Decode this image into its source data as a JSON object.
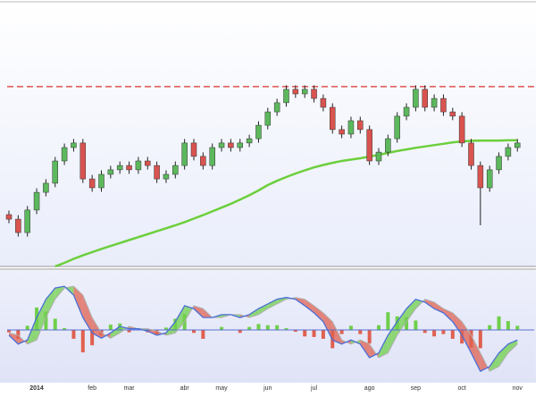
{
  "chart_data": [
    {
      "type": "candlestick",
      "categories": [
        null,
        null,
        null,
        "2014",
        null,
        null,
        null,
        null,
        null,
        "feb",
        null,
        null,
        null,
        "mar",
        null,
        null,
        null,
        null,
        null,
        "abr",
        null,
        null,
        null,
        "may",
        null,
        null,
        null,
        null,
        "jun",
        null,
        null,
        null,
        null,
        "jul",
        null,
        null,
        null,
        null,
        null,
        "ago",
        null,
        null,
        null,
        null,
        "sep",
        null,
        null,
        null,
        null,
        "oct",
        null,
        null,
        null,
        null,
        null,
        "nov"
      ],
      "open": [
        20,
        18.3,
        13.3,
        21.7,
        28.3,
        31.7,
        40,
        45,
        46.7,
        33.3,
        30,
        35,
        36.7,
        38.3,
        36.7,
        40,
        38.3,
        33.3,
        35,
        38.3,
        46.7,
        41.7,
        38.3,
        45,
        46.7,
        45,
        46.7,
        48.3,
        53.3,
        58.3,
        61.7,
        66.7,
        65,
        66.7,
        63.3,
        60,
        51.7,
        50,
        55,
        51.7,
        40,
        43.3,
        48.3,
        56.7,
        60,
        66.7,
        60,
        63.3,
        58.3,
        56.7,
        46.7,
        38.3,
        30,
        36.7,
        41.7,
        45
      ],
      "high": [
        21.5,
        19.8,
        23.2,
        29.8,
        33.2,
        41.5,
        46.5,
        48.2,
        48.2,
        34.8,
        36.5,
        38.2,
        39.8,
        39.8,
        41.5,
        41.5,
        39.8,
        36.5,
        39.8,
        48.2,
        48.2,
        43.2,
        46.5,
        48.2,
        48.2,
        48.2,
        49.8,
        54.8,
        59.8,
        63.2,
        68.2,
        68.2,
        68.2,
        68.2,
        64.8,
        61.5,
        53.2,
        56.5,
        56.5,
        53.2,
        44.8,
        49.8,
        58.2,
        61.5,
        68.2,
        68.2,
        64.8,
        64.8,
        59.8,
        58.2,
        48.2,
        39.8,
        38.2,
        43.2,
        46.5,
        48.2
      ],
      "low": [
        16.8,
        11.8,
        11.8,
        20.2,
        26.8,
        30.2,
        38.5,
        43.5,
        31.8,
        28.5,
        28.5,
        33.5,
        35.2,
        35.2,
        35.2,
        36.8,
        31.8,
        31.8,
        33.5,
        36.8,
        40.2,
        36.8,
        36.8,
        43.5,
        43.5,
        43.5,
        45.2,
        46.8,
        51.8,
        56.8,
        60.2,
        63.5,
        63.5,
        61.8,
        58.5,
        50.2,
        48.5,
        48.5,
        50.2,
        38.5,
        38.5,
        41.8,
        46.8,
        55.2,
        58.5,
        58.5,
        58.5,
        56.8,
        55.2,
        45.2,
        36.8,
        16,
        28.5,
        35.2,
        40.2,
        43.5
      ],
      "close": [
        18.3,
        13.3,
        21.7,
        28.3,
        31.7,
        40,
        45,
        46.7,
        33.3,
        30,
        35,
        36.7,
        38.3,
        36.7,
        40,
        38.3,
        33.3,
        35,
        38.3,
        46.7,
        41.7,
        38.3,
        45,
        46.7,
        45,
        46.7,
        48.3,
        53.3,
        58.3,
        61.7,
        66.7,
        65,
        66.7,
        63.3,
        60,
        51.7,
        50,
        55,
        51.7,
        40,
        43.3,
        48.3,
        56.7,
        60,
        66.7,
        60,
        63.3,
        58.3,
        56.7,
        46.7,
        38.3,
        30,
        36.7,
        41.7,
        45,
        46.7
      ],
      "up_color": "#5cb85c",
      "down_color": "#d9534f",
      "moving_average": {
        "color": "#6ccf3c",
        "values": [
          null,
          null,
          null,
          null,
          null,
          0.7,
          2,
          3.5,
          4.8,
          6,
          7.2,
          8.3,
          9.4,
          10.5,
          11.6,
          12.7,
          13.8,
          14.9,
          16,
          17.2,
          18.5,
          19.8,
          21.2,
          22.6,
          24,
          25.6,
          27.2,
          29,
          31,
          32.6,
          34,
          35.3,
          36.5,
          37.6,
          38.5,
          39.3,
          40,
          40.5,
          41,
          41.6,
          42.3,
          43,
          43.7,
          44.3,
          44.9,
          45.4,
          45.9,
          46.4,
          46.9,
          47.3,
          47.5,
          47.6,
          47.6,
          47.6,
          47.7,
          47.7
        ]
      },
      "levels": [
        {
          "value": 67.7,
          "color": "#d9342b",
          "style": "dashed"
        },
        {
          "value": 47.7,
          "color": "#e0443c",
          "style": "solid",
          "from": 50,
          "to": 55
        }
      ],
      "ylim": [
        0,
        100
      ]
    },
    {
      "type": "macd",
      "macd": {
        "color": "#4a6fd8",
        "values": [
          -0.9,
          -2.4,
          -1.7,
          2.1,
          5.2,
          7.1,
          7.4,
          5.9,
          2.1,
          -0.5,
          -1.4,
          -0.5,
          0.6,
          0.2,
          0.2,
          -0.2,
          -0.9,
          -0.5,
          1.4,
          4.1,
          3.6,
          2.1,
          2.1,
          2.6,
          2.6,
          2.1,
          2.6,
          3.6,
          4.4,
          5.2,
          5.5,
          5.2,
          4.1,
          2.9,
          1.4,
          -1.7,
          -2.4,
          -1.7,
          -2.4,
          -4.7,
          -3.9,
          -0.9,
          1.4,
          3.6,
          5.2,
          4.7,
          3.6,
          2.9,
          1.4,
          -0.9,
          -3.9,
          -7,
          -6.2,
          -3.9,
          -2.4,
          -1.7
        ]
      },
      "signal": {
        "color": "#b0b0b0",
        "values": [
          -0.5,
          -0.9,
          -2.4,
          -1.7,
          2.1,
          5.2,
          7.1,
          7.4,
          5.9,
          2.1,
          -0.5,
          -1.4,
          -0.5,
          0.6,
          0.2,
          0.2,
          -0.2,
          -0.9,
          -0.5,
          1.4,
          4.1,
          3.6,
          2.1,
          2.1,
          2.6,
          2.6,
          2.1,
          2.6,
          3.6,
          4.4,
          5.2,
          5.5,
          5.2,
          4.1,
          2.9,
          1.4,
          -1.7,
          -2.4,
          -1.7,
          -2.4,
          -4.7,
          -3.9,
          -0.9,
          1.4,
          3.6,
          5.2,
          4.7,
          3.6,
          2.9,
          1.4,
          -0.9,
          -3.9,
          -7,
          -6.2,
          -3.9,
          -2.4
        ]
      },
      "histogram": [
        -0.4,
        -1.5,
        0.7,
        3.8,
        3.1,
        1.9,
        0.3,
        -1.5,
        -3.8,
        -2.6,
        -0.9,
        0.9,
        1.1,
        -0.4,
        0,
        -0.4,
        -0.7,
        0.4,
        1.9,
        2.7,
        -0.5,
        -1.5,
        0,
        0.5,
        0,
        -0.5,
        0.5,
        1,
        0.8,
        0.8,
        0.3,
        -0.3,
        -1.1,
        -1.2,
        -1.5,
        -3.1,
        -0.7,
        0.7,
        -0.7,
        -2.3,
        0.8,
        3,
        2.3,
        2.2,
        1.6,
        -0.5,
        -1.1,
        -0.7,
        -1.5,
        -2.3,
        -3,
        -3.1,
        0.8,
        2.3,
        1.5,
        0.7
      ],
      "up_color": "#6fcf4a",
      "down_color": "#e06050",
      "ylim": [
        -10,
        10
      ]
    }
  ]
}
